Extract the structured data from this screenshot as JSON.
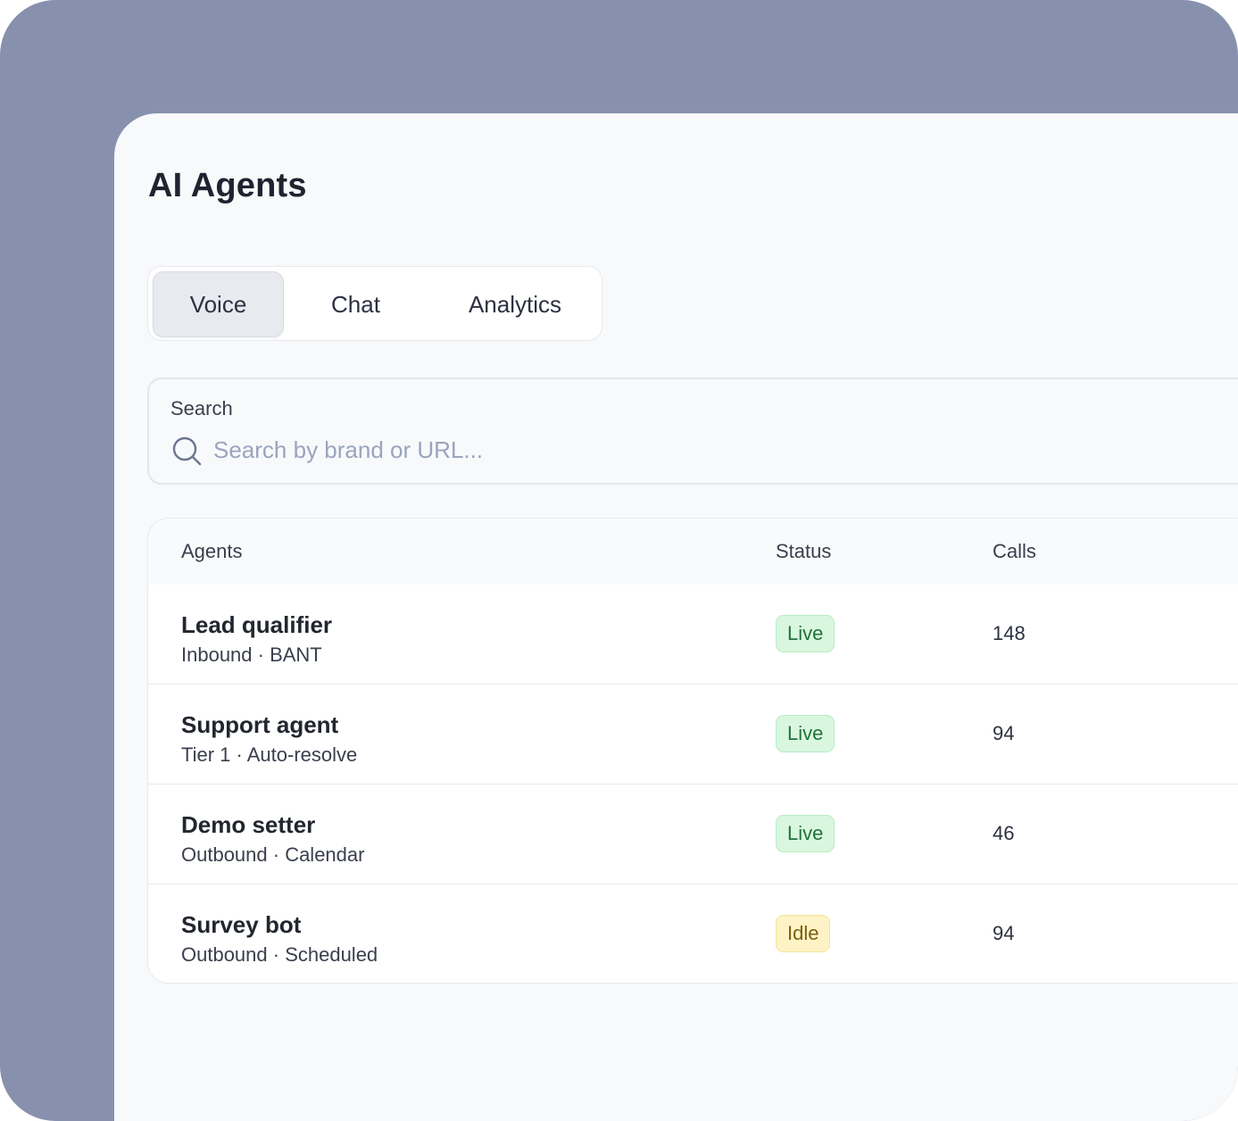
{
  "page": {
    "title": "AI Agents"
  },
  "tabs": [
    {
      "label": "Voice",
      "active": true
    },
    {
      "label": "Chat",
      "active": false
    },
    {
      "label": "Analytics",
      "active": false
    }
  ],
  "search": {
    "label": "Search",
    "placeholder": "Search by brand or URL...",
    "value": ""
  },
  "table": {
    "columns": [
      "Agents",
      "Status",
      "Calls"
    ],
    "rows": [
      {
        "name": "Lead qualifier",
        "sub": "Inbound · BANT",
        "status": "Live",
        "calls": "148"
      },
      {
        "name": "Support agent",
        "sub": "Tier 1 · Auto-resolve",
        "status": "Live",
        "calls": "94"
      },
      {
        "name": "Demo setter",
        "sub": "Outbound · Calendar",
        "status": "Live",
        "calls": "46"
      },
      {
        "name": "Survey bot",
        "sub": "Outbound · Scheduled",
        "status": "Idle",
        "calls": "94"
      }
    ]
  },
  "colors": {
    "frame": "#8791ae",
    "panel": "#f8f9fb",
    "live_badge": "#d9f7df",
    "idle_badge": "#fdf3c6"
  }
}
